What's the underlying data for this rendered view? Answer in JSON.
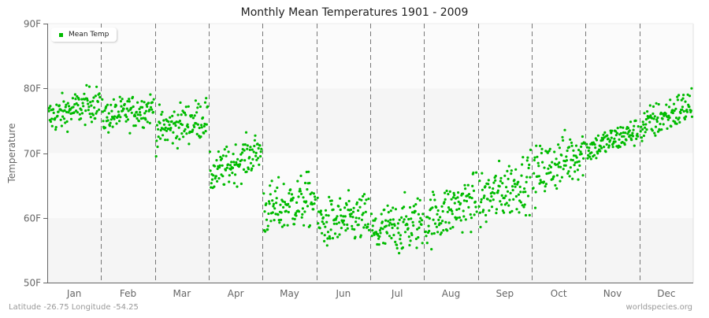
{
  "title": "Monthly Mean Temperatures 1901 - 2009",
  "footer": {
    "location": "Latitude -26.75 Longitude -54.25",
    "source": "worldspecies.org"
  },
  "legend": {
    "label": "Mean Temp",
    "color": "#00bb00"
  },
  "colors": {
    "point": "#00bb00",
    "band_light": "#f5f5f5",
    "band_lighter": "#fbfbfb",
    "axis": "#666666",
    "separator": "#777777"
  },
  "chart_data": {
    "type": "scatter",
    "title": "Monthly Mean Temperatures 1901 - 2009",
    "xlabel": "",
    "ylabel": "Temperature",
    "ylim": [
      50,
      90
    ],
    "yticks": [
      "50F",
      "60F",
      "70F",
      "80F",
      "90F"
    ],
    "categories": [
      "Jan",
      "Feb",
      "Mar",
      "Apr",
      "May",
      "Jun",
      "Jul",
      "Aug",
      "Sep",
      "Oct",
      "Nov",
      "Dec"
    ],
    "grid": "alternating horizontal bands, dashed vertical month separators",
    "legend_position": "top-left",
    "series": [
      {
        "name": "Mean Temp",
        "years": [
          1901,
          2009
        ],
        "monthly_summary": [
          {
            "month": "Jan",
            "min": 73.3,
            "max": 81.6,
            "mean": 77.3,
            "start": 75.5,
            "end": 78.0
          },
          {
            "month": "Feb",
            "min": 72.8,
            "max": 80.6,
            "mean": 76.5,
            "start": 75.5,
            "end": 77.0
          },
          {
            "month": "Mar",
            "min": 69.5,
            "max": 79.0,
            "mean": 74.5,
            "start": 73.5,
            "end": 75.5
          },
          {
            "month": "Apr",
            "min": 64.0,
            "max": 73.2,
            "mean": 68.5,
            "start": 66.5,
            "end": 70.5
          },
          {
            "month": "May",
            "min": 56.5,
            "max": 69.0,
            "mean": 62.0,
            "start": 61.0,
            "end": 63.0
          },
          {
            "month": "Jun",
            "min": 53.5,
            "max": 65.0,
            "mean": 59.5,
            "start": 59.0,
            "end": 60.0
          },
          {
            "month": "Jul",
            "min": 52.5,
            "max": 65.0,
            "mean": 58.5,
            "start": 57.5,
            "end": 59.5
          },
          {
            "month": "Aug",
            "min": 54.5,
            "max": 67.0,
            "mean": 61.0,
            "start": 59.5,
            "end": 63.0
          },
          {
            "month": "Sep",
            "min": 57.0,
            "max": 70.5,
            "mean": 64.0,
            "start": 62.5,
            "end": 66.0
          },
          {
            "month": "Oct",
            "min": 61.5,
            "max": 74.0,
            "mean": 68.5,
            "start": 66.5,
            "end": 70.5
          },
          {
            "month": "Nov",
            "min": 68.5,
            "max": 75.0,
            "mean": 72.0,
            "start": 70.5,
            "end": 73.5
          },
          {
            "month": "Dec",
            "min": 71.5,
            "max": 80.0,
            "mean": 76.0,
            "start": 74.0,
            "end": 77.5
          }
        ]
      }
    ]
  }
}
